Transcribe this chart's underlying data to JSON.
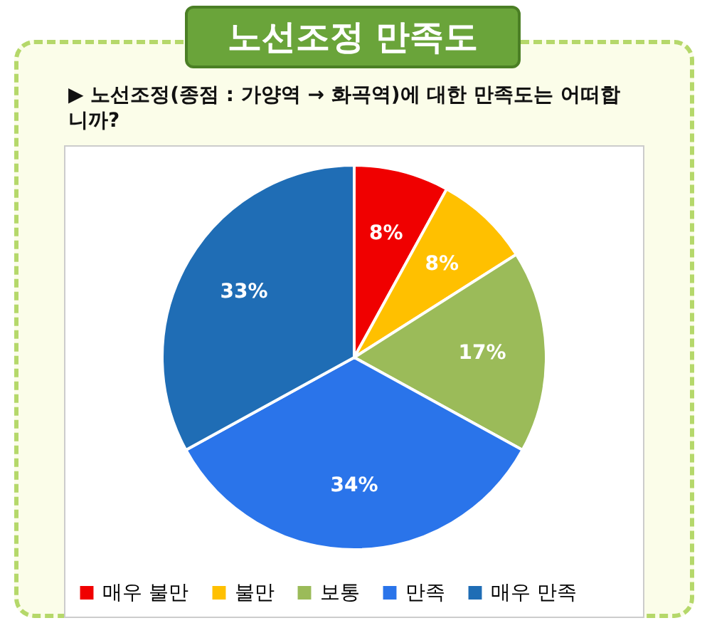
{
  "chart_data": {
    "type": "pie",
    "title": "노선조정 만족도",
    "subtitle": "▶ 노선조정(종점 : 가양역 → 화곡역)에 대한 만족도는 어떠합니까?",
    "categories": [
      "매우 불만",
      "불만",
      "보통",
      "만족",
      "매우 만족"
    ],
    "values": [
      8,
      8,
      17,
      34,
      33
    ],
    "colors": [
      "#f00000",
      "#ffc000",
      "#9bbb59",
      "#2a74ea",
      "#1f6db5"
    ],
    "value_labels": [
      "8%",
      "8%",
      "17%",
      "34%",
      "33%"
    ],
    "legend": "bottom"
  }
}
